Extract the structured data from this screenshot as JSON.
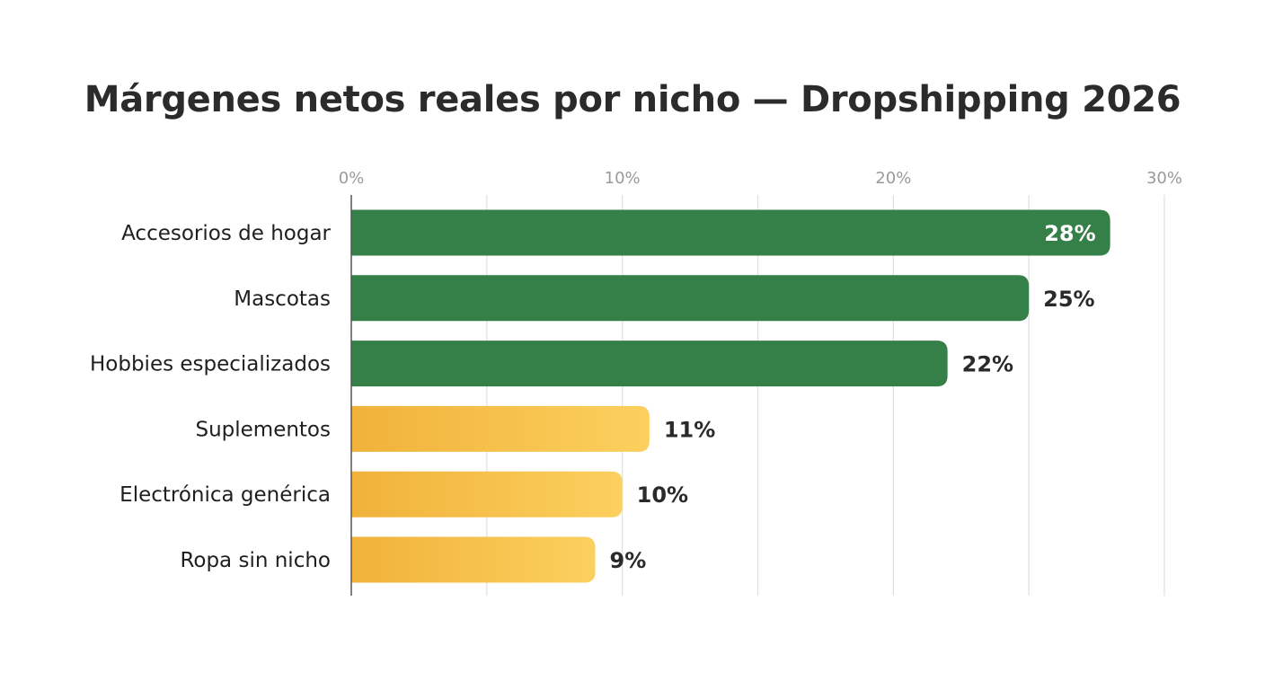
{
  "chart_data": {
    "type": "bar",
    "orientation": "horizontal",
    "title": "Márgenes netos reales por nicho — Dropshipping 2026",
    "categories": [
      "Accesorios de hogar",
      "Mascotas",
      "Hobbies especializados",
      "Suplementos",
      "Electrónica genérica",
      "Ropa sin nicho"
    ],
    "values": [
      28,
      25,
      22,
      11,
      10,
      9
    ],
    "value_labels": [
      "28%",
      "25%",
      "22%",
      "11%",
      "10%",
      "9%"
    ],
    "xlim": [
      0,
      30
    ],
    "x_ticks": [
      0,
      10,
      20,
      30
    ],
    "x_tick_labels": [
      "0%",
      "10%",
      "20%",
      "30%"
    ],
    "xlabel": "",
    "ylabel": "",
    "grid": true,
    "x_axis_position": "top",
    "colors": {
      "high": "#357f48",
      "low_start": "#f0b23a",
      "low_end": "#fcd05e",
      "grid": "#e2e2e2",
      "axis": "#555555"
    },
    "bar_colors": [
      "high",
      "high",
      "high",
      "low",
      "low",
      "low"
    ]
  }
}
